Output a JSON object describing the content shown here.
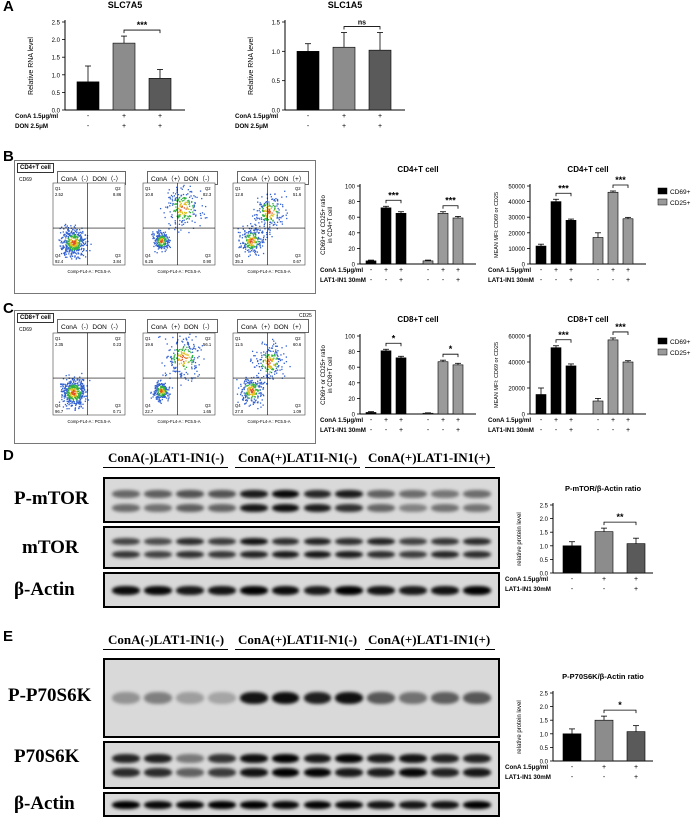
{
  "panels": {
    "A": "A",
    "B": "B",
    "C": "C",
    "D": "D",
    "E": "E"
  },
  "chart_data": [
    {
      "id": "A1",
      "type": "bar",
      "title": "SLC7A5",
      "ylabel": "Relative RNA level",
      "ylim": [
        0,
        2.5
      ],
      "yticks": [
        "0.0",
        "0.5",
        "1.0",
        "1.5",
        "2.0",
        "2.5"
      ],
      "values": [
        0.8,
        1.9,
        0.9
      ],
      "errors": [
        0.45,
        0.2,
        0.25
      ],
      "colors": [
        "#000000",
        "#8c8c8c",
        "#5a5a5a"
      ],
      "sig": [
        {
          "from": 1,
          "to": 2,
          "text": "***"
        }
      ],
      "conditions": [
        {
          "label": "ConA 1.5μg/ml",
          "marks": [
            "-",
            "+",
            "+"
          ]
        },
        {
          "label": "DON 2.5μM",
          "marks": [
            "-",
            "+",
            "+"
          ]
        }
      ]
    },
    {
      "id": "A2",
      "type": "bar",
      "title": "SLC1A5",
      "ylabel": "Relative RNA level",
      "ylim": [
        0,
        1.5
      ],
      "yticks": [
        "0.0",
        "0.5",
        "1.0",
        "1.5"
      ],
      "values": [
        1.0,
        1.07,
        1.02
      ],
      "errors": [
        0.13,
        0.25,
        0.3
      ],
      "colors": [
        "#000000",
        "#8c8c8c",
        "#5a5a5a"
      ],
      "sig": [
        {
          "from": 1,
          "to": 2,
          "text": "ns"
        }
      ],
      "conditions": [
        {
          "label": "ConA 1.5μg/ml",
          "marks": [
            "-",
            "+",
            "+"
          ]
        },
        {
          "label": "DON 2.5μM",
          "marks": [
            "-",
            "+",
            "+"
          ]
        }
      ]
    },
    {
      "id": "B1",
      "type": "bar",
      "title": "CD4+T cell",
      "ylabel": "CD69+ or CD25+ ratio in CD4+T cell",
      "ylim": [
        0,
        100
      ],
      "yticks": [
        "0",
        "20",
        "40",
        "60",
        "80",
        "100"
      ],
      "values": [
        4,
        72,
        65,
        4,
        65,
        59
      ],
      "errors": [
        1,
        2,
        2,
        1,
        2,
        2
      ],
      "colors": [
        "#000000",
        "#000000",
        "#000000",
        "#9a9a9a",
        "#9a9a9a",
        "#9a9a9a"
      ],
      "sig": [
        {
          "from": 1,
          "to": 2,
          "text": "***"
        },
        {
          "from": 4,
          "to": 5,
          "text": "***"
        }
      ],
      "conditions": [
        {
          "label": "ConA 1.5μg/ml",
          "marks": [
            "-",
            "+",
            "+",
            "-",
            "+",
            "+"
          ]
        },
        {
          "label": "LAT1-IN1 30mM",
          "marks": [
            "-",
            "-",
            "+",
            "-",
            "-",
            "+"
          ]
        }
      ]
    },
    {
      "id": "B2",
      "type": "bar",
      "title": "CD4+T cell",
      "ylabel": "MEAN MFI: CD69 or CD25",
      "ylim": [
        0,
        50000
      ],
      "yticks": [
        "0",
        "10000",
        "20000",
        "30000",
        "40000",
        "50000"
      ],
      "values": [
        11500,
        40000,
        28000,
        17000,
        46000,
        29000
      ],
      "errors": [
        1200,
        1500,
        800,
        3000,
        800,
        900
      ],
      "colors": [
        "#000000",
        "#000000",
        "#000000",
        "#9a9a9a",
        "#9a9a9a",
        "#9a9a9a"
      ],
      "sig": [
        {
          "from": 1,
          "to": 2,
          "text": "***"
        },
        {
          "from": 4,
          "to": 5,
          "text": "***"
        }
      ],
      "legend": [
        {
          "name": "CD69+",
          "color": "#000000"
        },
        {
          "name": "CD25+",
          "color": "#9a9a9a"
        }
      ],
      "conditions": [
        {
          "label": "ConA 1.5μg/ml",
          "marks": [
            "-",
            "+",
            "+",
            "-",
            "+",
            "+"
          ]
        },
        {
          "label": "LAT1-IN1 30mM",
          "marks": [
            "-",
            "-",
            "+",
            "-",
            "-",
            "+"
          ]
        }
      ]
    },
    {
      "id": "C1",
      "type": "bar",
      "title": "CD8+T cell",
      "ylabel": "CD69+ or CD25+ ratio in CD8+T cell",
      "ylim": [
        0,
        100
      ],
      "yticks": [
        "0",
        "20",
        "40",
        "60",
        "80",
        "100"
      ],
      "values": [
        2,
        81,
        72,
        1,
        67,
        63
      ],
      "errors": [
        1,
        2,
        2,
        0.5,
        2,
        2
      ],
      "colors": [
        "#000000",
        "#000000",
        "#000000",
        "#9a9a9a",
        "#9a9a9a",
        "#9a9a9a"
      ],
      "sig": [
        {
          "from": 1,
          "to": 2,
          "text": "*"
        },
        {
          "from": 4,
          "to": 5,
          "text": "*"
        }
      ],
      "conditions": [
        {
          "label": "ConA 1.5μg/ml",
          "marks": [
            "-",
            "+",
            "+",
            "-",
            "+",
            "+"
          ]
        },
        {
          "label": "LAT1-IN1 30mM",
          "marks": [
            "-",
            "-",
            "+",
            "-",
            "-",
            "+"
          ]
        }
      ]
    },
    {
      "id": "C2",
      "type": "bar",
      "title": "CD8+T cell",
      "ylabel": "MEAN MFI: CD69 or CD25",
      "ylim": [
        0,
        60000
      ],
      "yticks": [
        "0",
        "20000",
        "40000",
        "60000"
      ],
      "values": [
        15000,
        51000,
        37000,
        10000,
        57000,
        40000
      ],
      "errors": [
        5000,
        1500,
        1500,
        2000,
        1500,
        1000
      ],
      "colors": [
        "#000000",
        "#000000",
        "#000000",
        "#9a9a9a",
        "#9a9a9a",
        "#9a9a9a"
      ],
      "sig": [
        {
          "from": 1,
          "to": 2,
          "text": "***"
        },
        {
          "from": 4,
          "to": 5,
          "text": "***"
        }
      ],
      "legend": [
        {
          "name": "CD69+",
          "color": "#000000"
        },
        {
          "name": "CD25+",
          "color": "#9a9a9a"
        }
      ],
      "conditions": [
        {
          "label": "ConA 1.5μg/ml",
          "marks": [
            "-",
            "+",
            "+",
            "-",
            "+",
            "+"
          ]
        },
        {
          "label": "LAT1-IN1 30mM",
          "marks": [
            "-",
            "-",
            "+",
            "-",
            "-",
            "+"
          ]
        }
      ]
    },
    {
      "id": "D1",
      "type": "bar",
      "title": "P-mTOR/β-Actin ratio",
      "ylabel": "relative protein level",
      "ylim": [
        0,
        2.5
      ],
      "yticks": [
        "0.0",
        "0.5",
        "1.0",
        "1.5",
        "2.0",
        "2.5"
      ],
      "values": [
        1.0,
        1.52,
        1.08
      ],
      "errors": [
        0.15,
        0.13,
        0.2
      ],
      "colors": [
        "#000000",
        "#8c8c8c",
        "#5a5a5a"
      ],
      "sig": [
        {
          "from": 1,
          "to": 2,
          "text": "**"
        }
      ],
      "conditions": [
        {
          "label": "ConA 1.5μg/ml",
          "marks": [
            "-",
            "+",
            "+"
          ]
        },
        {
          "label": "LAT1-IN1 30mM",
          "marks": [
            "-",
            "-",
            "+"
          ]
        }
      ]
    },
    {
      "id": "E1",
      "type": "bar",
      "title": "P-P70S6K/β-Actin ratio",
      "ylabel": "relative protein level",
      "ylim": [
        0,
        2.5
      ],
      "yticks": [
        "0.0",
        "0.5",
        "1.0",
        "1.5",
        "2.0",
        "2.5"
      ],
      "values": [
        1.0,
        1.5,
        1.08
      ],
      "errors": [
        0.18,
        0.15,
        0.22
      ],
      "colors": [
        "#000000",
        "#8c8c8c",
        "#5a5a5a"
      ],
      "sig": [
        {
          "from": 1,
          "to": 2,
          "text": "*"
        }
      ],
      "conditions": [
        {
          "label": "ConA 1.5μg/ml",
          "marks": [
            "-",
            "+",
            "+"
          ]
        },
        {
          "label": "LAT1-IN1 30mM",
          "marks": [
            "-",
            "-",
            "+"
          ]
        }
      ]
    }
  ],
  "flow": {
    "B": {
      "tag": "CD4+T cell",
      "yaxis": "CD69",
      "xaxis": "Comp-FL4-A : PC5.5-A",
      "titles": [
        "ConA（-）DON（-）",
        "ConA（+）DON（-）",
        "ConA（+）DON（+）"
      ],
      "quads": [
        [
          "Q1",
          "2.52",
          "Q2",
          "8.86",
          "Q4",
          "92.4",
          "Q3",
          "3.84"
        ],
        [
          "Q1",
          "10.8",
          "Q2",
          "82.3",
          "Q4",
          "6.25",
          "Q3",
          "0.90"
        ],
        [
          "Q1",
          "12.8",
          "Q2",
          "51.6",
          "Q4",
          "35.3",
          "Q3",
          "0.67"
        ]
      ]
    },
    "C": {
      "tag": "CD8+T cell",
      "yaxis": "CD69",
      "xaxis": "Comp-FL4-A : PC5.5-A",
      "titles": [
        "ConA（-）DON（-）",
        "ConA（+）DON（-）",
        "ConA（+）DON（+）"
      ],
      "quads": [
        [
          "Q1",
          "2.35",
          "Q2",
          "0.23",
          "Q4",
          "96.7",
          "Q3",
          "0.71"
        ],
        [
          "Q1",
          "19.6",
          "Q2",
          "56.1",
          "Q4",
          "22.7",
          "Q3",
          "1.65"
        ],
        [
          "Q1",
          "11.5",
          "Q2",
          "60.6",
          "Q4",
          "27.0",
          "Q3",
          "1.09"
        ]
      ],
      "corner": "CD25"
    }
  },
  "western": {
    "D": {
      "groups": [
        "ConA(-)LAT1-IN1(-)",
        "ConA(+)LAT1I-N1(-)",
        "ConA(+)LAT1-IN1(+)"
      ],
      "rows": [
        "P-mTOR",
        "mTOR",
        "β-Actin"
      ]
    },
    "E": {
      "groups": [
        "ConA(-)LAT1-IN1(-)",
        "ConA(+)LAT1I-N1(-)",
        "ConA(+)LAT1-IN1(+)"
      ],
      "rows": [
        "P-P70S6K",
        "P70S6K",
        "β-Actin"
      ]
    }
  }
}
